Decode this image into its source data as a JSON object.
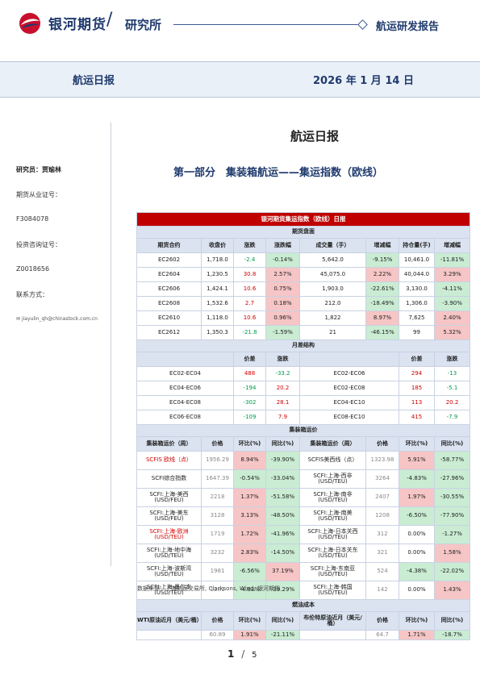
{
  "header": {
    "brand": "银河期货",
    "slash": "/",
    "dept": "研究所",
    "report_type": "航运研发报告",
    "band_title": "航运日报",
    "band_date": "2026 年 1 月 14 日"
  },
  "sidebar": {
    "researcher": "研究员：贾瑜林",
    "license_label": "期货从业证号：",
    "license_no": "F3084078",
    "advisory_label": "投资咨询证号：",
    "advisory_no": "Z0018656",
    "contact_label": "联系方式：",
    "email": "jiayulin_qh@chinastock.com.cn"
  },
  "main_title": "航运日报",
  "section_title": "第一部分　集装箱航运——集运指数（欧线）",
  "table": {
    "title": "银河期货集运指数（欧线）日报",
    "futures": {
      "section": "期货盘面",
      "headers": [
        "期货合约",
        "收盘价",
        "涨跌",
        "涨跌幅",
        "成交量（手）",
        "增减幅",
        "持仓量(手)",
        "增减幅"
      ],
      "rows": [
        [
          "EC2602",
          "1,718.0",
          "-2.4",
          "-0.14%",
          "5,642.0",
          "-9.15%",
          "10,461.0",
          "-11.81%"
        ],
        [
          "EC2604",
          "1,230.5",
          "30.8",
          "2.57%",
          "45,075.0",
          "2.22%",
          "40,044.0",
          "3.29%"
        ],
        [
          "EC2606",
          "1,424.1",
          "10.6",
          "0.75%",
          "1,903.0",
          "-22.61%",
          "3,130.0",
          "-4.11%"
        ],
        [
          "EC2608",
          "1,532.6",
          "2.7",
          "0.18%",
          "212.0",
          "-18.49%",
          "1,306.0",
          "-3.90%"
        ],
        [
          "EC2610",
          "1,118.0",
          "10.6",
          "0.96%",
          "1,822",
          "8.97%",
          "7,625",
          "2.40%"
        ],
        [
          "EC2612",
          "1,350.3",
          "-21.8",
          "-1.59%",
          "21",
          "-46.15%",
          "99",
          "5.32%"
        ]
      ]
    },
    "spread": {
      "section": "月差结构",
      "headers": [
        "",
        "价差",
        "涨跌",
        "",
        "价差",
        "涨跌"
      ],
      "rows": [
        [
          "EC02-EC04",
          "488",
          "-33.2",
          "EC02-EC06",
          "294",
          "-13"
        ],
        [
          "EC04-EC06",
          "-194",
          "20.2",
          "EC02-EC08",
          "185",
          "-5.1"
        ],
        [
          "EC04-EC08",
          "-302",
          "28.1",
          "EC04-EC10",
          "113",
          "20.2"
        ],
        [
          "EC06-EC08",
          "-109",
          "7.9",
          "EC08-EC10",
          "415",
          "-7.9"
        ]
      ]
    },
    "freight": {
      "section": "集装箱运价",
      "headers": [
        "集装箱运价（周）",
        "价格",
        "环比(%)",
        "同比(%)",
        "集装箱运价（周）",
        "价格",
        "环比(%)",
        "同比(%)"
      ],
      "rows": [
        [
          "SCFIS 欧线（点）",
          "1956.29",
          "8.94%",
          "-39.90%",
          "SCFIS美西线（点）",
          "1323.98",
          "5.91%",
          "-58.77%"
        ],
        [
          "SCFI综合指数",
          "1647.39",
          "-0.54%",
          "-33.04%",
          "SCFI:上海-西非\n(USD/TEU)",
          "3264",
          "-4.83%",
          "-27.96%"
        ],
        [
          "SCFI:上海-美西\n(USD/FEU)",
          "2218",
          "1.37%",
          "-51.58%",
          "SCFI:上海-南非\n(USD/TEU)",
          "2407",
          "1.97%",
          "-30.55%"
        ],
        [
          "SCFI:上海-美东\n(USD/FEU)",
          "3128",
          "3.13%",
          "-48.50%",
          "SCFI:上海-南美\n(USD/TEU)",
          "1208",
          "-6.50%",
          "-77.90%"
        ],
        [
          "SCFI:上海-欧洲\n(USD/TEU)",
          "1719",
          "1.72%",
          "-41.96%",
          "SCFI:上海-日本关西\n(USD/TEU)",
          "312",
          "0.00%",
          "-1.27%"
        ],
        [
          "SCFI:上海-地中海\n(USD/TEU)",
          "3232",
          "2.83%",
          "-14.50%",
          "SCFI:上海-日本关东\n(USD/TEU)",
          "321",
          "0.00%",
          "1.58%"
        ],
        [
          "SCFI:上海-波斯湾\n(USD/TEU)",
          "1981",
          "-6.56%",
          "37.19%",
          "SCFI:上海-东南亚\n(USD/TEU)",
          "524",
          "-4.38%",
          "-22.02%"
        ],
        [
          "SCFI:上海-墨尔本\n(USD/TEU)",
          "1281",
          "-4.83%",
          "-39.29%",
          "SCFI:上海-韩国\n(USD/TEU)",
          "142",
          "0.00%",
          "1.43%"
        ]
      ]
    },
    "fuel": {
      "section": "燃油成本",
      "headers": [
        "WTI原油近月（美元/桶）",
        "价格",
        "环比(%)",
        "同比(%)",
        "布伦特原油近月（美元/桶）",
        "价格",
        "环比(%)",
        "同比(%)"
      ],
      "row": [
        "",
        "60.89",
        "1.91%",
        "-21.11%",
        "",
        "64.7",
        "1.71%",
        "-18.7%"
      ]
    }
  },
  "source": "数据来源：上海航运交易所, Clarksons, Wind, 银河期货",
  "page": {
    "current": "1",
    "sep": "/",
    "total": "5"
  },
  "colors": {
    "brand_blue": "#1f3a6d",
    "title_red": "#c00000",
    "pos_red": "#d00000",
    "neg_green": "#00994d"
  }
}
